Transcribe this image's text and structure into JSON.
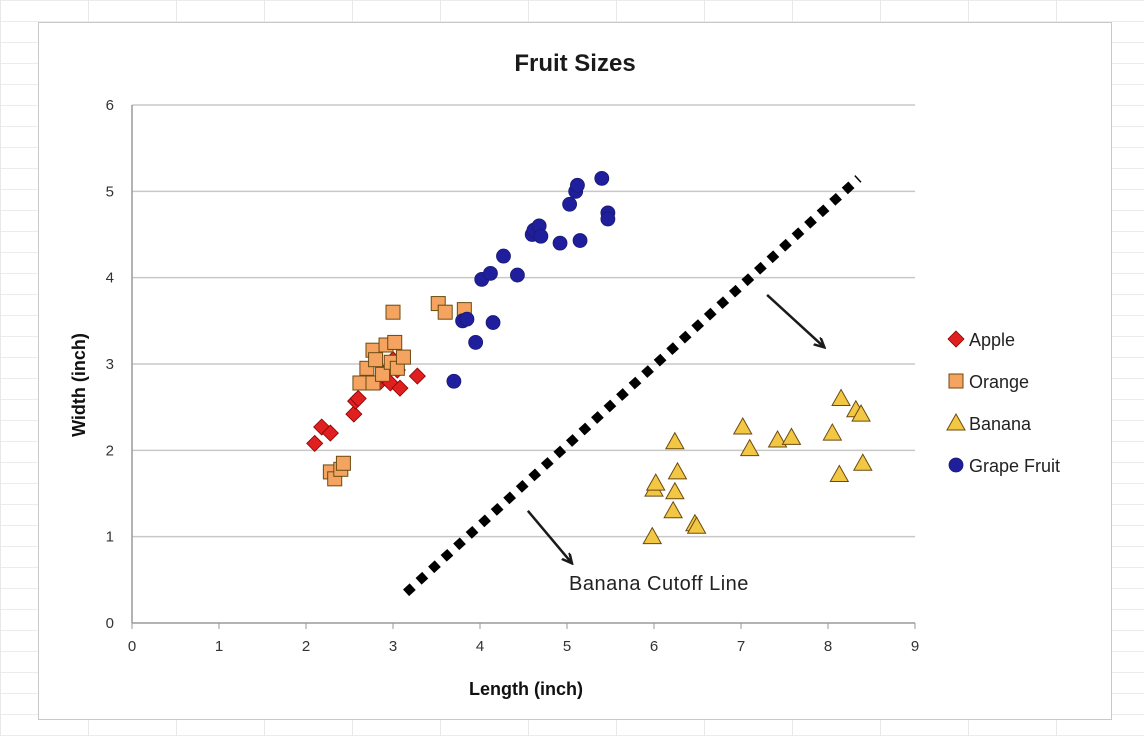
{
  "chart_data": {
    "type": "scatter",
    "title": "Fruit Sizes",
    "xlabel": "Length (inch)",
    "ylabel": "Width  (inch)",
    "xlim": [
      0,
      9
    ],
    "ylim": [
      0,
      6
    ],
    "x_ticks": [
      "0",
      "1",
      "2",
      "3",
      "4",
      "5",
      "6",
      "7",
      "8",
      "9"
    ],
    "y_ticks": [
      "0",
      "1",
      "2",
      "3",
      "4",
      "5",
      "6"
    ],
    "grid": "horizontal",
    "legend_position": "right",
    "series": [
      {
        "name": "Apple",
        "marker": "diamond",
        "color": "#e02020",
        "points": [
          [
            2.1,
            2.08
          ],
          [
            2.18,
            2.27
          ],
          [
            2.28,
            2.2
          ],
          [
            2.55,
            2.42
          ],
          [
            2.57,
            2.57
          ],
          [
            2.6,
            2.6
          ],
          [
            2.86,
            2.8
          ],
          [
            2.9,
            2.85
          ],
          [
            2.95,
            2.95
          ],
          [
            2.97,
            2.78
          ],
          [
            3.0,
            3.05
          ],
          [
            3.05,
            2.93
          ],
          [
            3.08,
            2.72
          ],
          [
            3.28,
            2.86
          ]
        ]
      },
      {
        "name": "Orange",
        "marker": "square",
        "color": "#f4a460",
        "points": [
          [
            2.28,
            1.75
          ],
          [
            2.33,
            1.67
          ],
          [
            2.4,
            1.78
          ],
          [
            2.43,
            1.85
          ],
          [
            2.62,
            2.78
          ],
          [
            2.7,
            2.95
          ],
          [
            2.77,
            2.78
          ],
          [
            2.77,
            3.16
          ],
          [
            2.8,
            3.05
          ],
          [
            2.88,
            2.88
          ],
          [
            2.92,
            3.22
          ],
          [
            2.98,
            3.02
          ],
          [
            3.0,
            3.6
          ],
          [
            3.02,
            3.25
          ],
          [
            3.05,
            2.95
          ],
          [
            3.12,
            3.08
          ],
          [
            3.52,
            3.7
          ],
          [
            3.6,
            3.6
          ],
          [
            3.82,
            3.63
          ]
        ]
      },
      {
        "name": "Banana",
        "marker": "triangle",
        "color": "#f2c744",
        "points": [
          [
            5.98,
            1.0
          ],
          [
            6.0,
            1.55
          ],
          [
            6.02,
            1.62
          ],
          [
            6.22,
            1.3
          ],
          [
            6.24,
            1.52
          ],
          [
            6.24,
            2.1
          ],
          [
            6.27,
            1.75
          ],
          [
            6.47,
            1.15
          ],
          [
            6.49,
            1.12
          ],
          [
            7.02,
            2.27
          ],
          [
            7.1,
            2.02
          ],
          [
            7.42,
            2.12
          ],
          [
            7.58,
            2.15
          ],
          [
            8.05,
            2.2
          ],
          [
            8.13,
            1.72
          ],
          [
            8.15,
            2.6
          ],
          [
            8.32,
            2.47
          ],
          [
            8.38,
            2.42
          ],
          [
            8.4,
            1.85
          ]
        ]
      },
      {
        "name": "Grape Fruit",
        "marker": "circle",
        "color": "#1f1f9e",
        "points": [
          [
            3.7,
            2.8
          ],
          [
            3.8,
            3.5
          ],
          [
            3.85,
            3.52
          ],
          [
            3.95,
            3.25
          ],
          [
            4.02,
            3.98
          ],
          [
            4.12,
            4.05
          ],
          [
            4.15,
            3.48
          ],
          [
            4.27,
            4.25
          ],
          [
            4.43,
            4.03
          ],
          [
            4.6,
            4.5
          ],
          [
            4.62,
            4.55
          ],
          [
            4.68,
            4.6
          ],
          [
            4.7,
            4.48
          ],
          [
            4.92,
            4.4
          ],
          [
            5.03,
            4.85
          ],
          [
            5.1,
            5.0
          ],
          [
            5.12,
            5.07
          ],
          [
            5.15,
            4.43
          ],
          [
            5.4,
            5.15
          ],
          [
            5.47,
            4.75
          ],
          [
            5.47,
            4.68
          ]
        ]
      }
    ],
    "cutoff_line": {
      "from": [
        3.15,
        0.35
      ],
      "to": [
        8.35,
        5.15
      ],
      "style": "dotted"
    },
    "annotation": "Banana Cutoff Line",
    "arrows": [
      {
        "from": [
          4.55,
          1.3
        ],
        "to": [
          5.05,
          0.7
        ]
      },
      {
        "from": [
          7.3,
          3.8
        ],
        "to": [
          7.95,
          3.2
        ]
      }
    ]
  }
}
